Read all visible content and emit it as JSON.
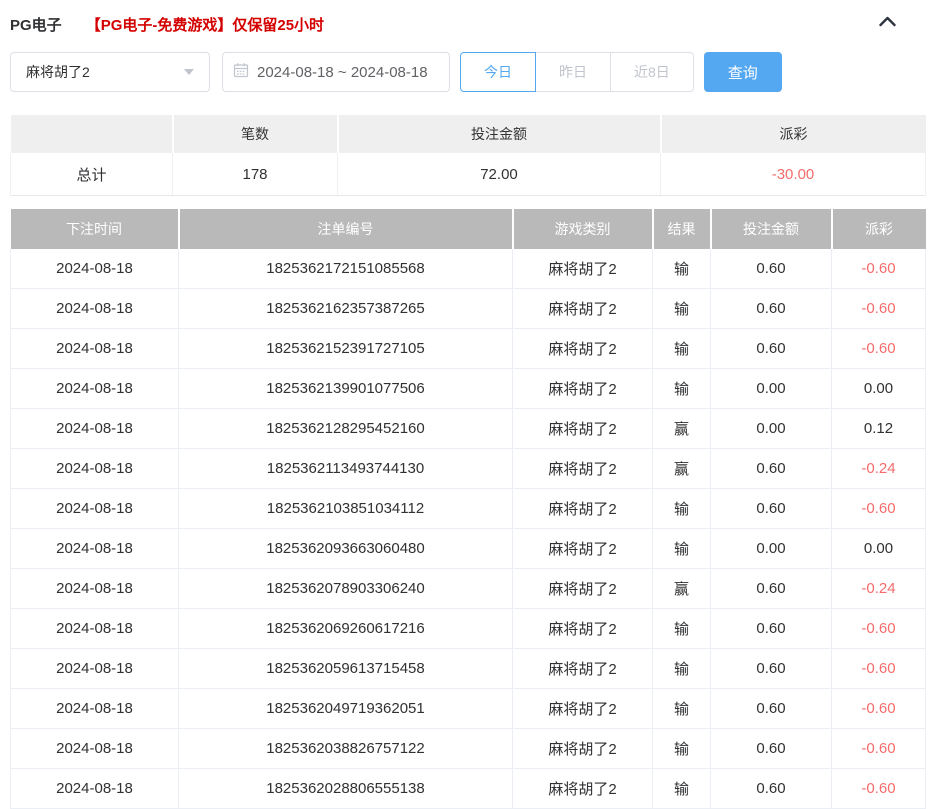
{
  "header": {
    "title": "PG电子",
    "notice": "【PG电子-免费游戏】仅保留25小时",
    "collapse_icon": "chevron-up-icon"
  },
  "controls": {
    "game_select": {
      "value": "麻将胡了2",
      "caret_icon": "chevron-down-icon"
    },
    "date_range": {
      "value": "2024-08-18 ~ 2024-08-18",
      "icon": "calendar-icon"
    },
    "quick_buttons": [
      {
        "label": "今日",
        "active": true
      },
      {
        "label": "昨日",
        "active": false
      },
      {
        "label": "近8日",
        "active": false
      }
    ],
    "query_label": "查询"
  },
  "summary": {
    "columns": [
      "",
      "笔数",
      "投注金额",
      "派彩"
    ],
    "total_label": "总计",
    "count": "178",
    "bet_amount": "72.00",
    "payout": "-30.00"
  },
  "bets": {
    "columns": [
      "下注时间",
      "注单编号",
      "游戏类别",
      "结果",
      "投注金额",
      "派彩"
    ],
    "rows": [
      [
        "2024-08-18",
        "1825362172151085568",
        "麻将胡了2",
        "输",
        "0.60",
        "-0.60"
      ],
      [
        "2024-08-18",
        "1825362162357387265",
        "麻将胡了2",
        "输",
        "0.60",
        "-0.60"
      ],
      [
        "2024-08-18",
        "1825362152391727105",
        "麻将胡了2",
        "输",
        "0.60",
        "-0.60"
      ],
      [
        "2024-08-18",
        "1825362139901077506",
        "麻将胡了2",
        "输",
        "0.00",
        "0.00"
      ],
      [
        "2024-08-18",
        "1825362128295452160",
        "麻将胡了2",
        "赢",
        "0.00",
        "0.12"
      ],
      [
        "2024-08-18",
        "1825362113493744130",
        "麻将胡了2",
        "赢",
        "0.60",
        "-0.24"
      ],
      [
        "2024-08-18",
        "1825362103851034112",
        "麻将胡了2",
        "输",
        "0.60",
        "-0.60"
      ],
      [
        "2024-08-18",
        "1825362093663060480",
        "麻将胡了2",
        "输",
        "0.00",
        "0.00"
      ],
      [
        "2024-08-18",
        "1825362078903306240",
        "麻将胡了2",
        "赢",
        "0.60",
        "-0.24"
      ],
      [
        "2024-08-18",
        "1825362069260617216",
        "麻将胡了2",
        "输",
        "0.60",
        "-0.60"
      ],
      [
        "2024-08-18",
        "1825362059613715458",
        "麻将胡了2",
        "输",
        "0.60",
        "-0.60"
      ],
      [
        "2024-08-18",
        "1825362049719362051",
        "麻将胡了2",
        "输",
        "0.60",
        "-0.60"
      ],
      [
        "2024-08-18",
        "1825362038826757122",
        "麻将胡了2",
        "输",
        "0.60",
        "-0.60"
      ],
      [
        "2024-08-18",
        "1825362028806555138",
        "麻将胡了2",
        "输",
        "0.60",
        "-0.60"
      ]
    ]
  },
  "colors": {
    "accent_blue": "#54a8f2",
    "notice_red": "#d40000",
    "negative_red": "#f56c6c",
    "table_header_gray": "#b9b9b9",
    "summary_header_gray": "#efefef"
  }
}
